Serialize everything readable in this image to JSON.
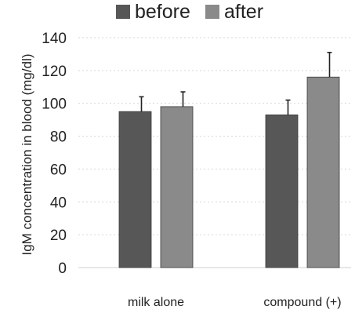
{
  "chart_data": {
    "type": "bar",
    "categories": [
      "milk alone",
      "compound (+)"
    ],
    "series": [
      {
        "name": "before",
        "values": [
          95,
          93
        ],
        "errors": [
          9,
          9
        ],
        "color": "#575757"
      },
      {
        "name": "after",
        "values": [
          98,
          116
        ],
        "errors": [
          9,
          15
        ],
        "color": "#8a8a8a"
      }
    ],
    "title": "",
    "xlabel": "",
    "ylabel": "IgM concentration in blood (mg/dl)",
    "ylim": [
      0,
      140
    ],
    "yticks": [
      "0",
      "20",
      "40",
      "60",
      "80",
      "100",
      "120",
      "140"
    ],
    "grid": true,
    "legend_position": "top"
  }
}
